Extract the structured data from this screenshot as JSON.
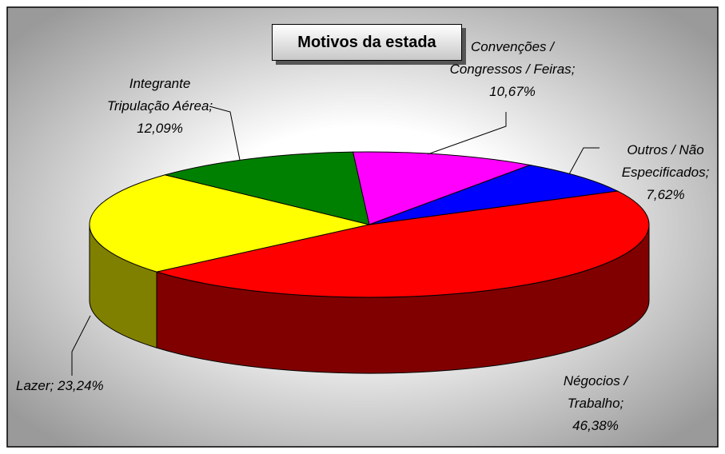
{
  "chart_data": {
    "type": "pie3d",
    "title": "Motivos da estada",
    "categories": [
      "Négocios / Trabalho",
      "Lazer",
      "Integrante Tripulação Aérea",
      "Convenções / Congressos / Feiras",
      "Outros / Não Especificados"
    ],
    "values": [
      46.38,
      23.24,
      12.09,
      10.67,
      7.62
    ],
    "value_labels": [
      "46,38%",
      "23,24%",
      "12,09%",
      "10,67%",
      "7,62%"
    ],
    "label_separator": ";",
    "colors": [
      "#ff0000",
      "#ffff00",
      "#008000",
      "#ff00ff",
      "#0000ff"
    ],
    "side_colors": [
      "#800000",
      "#808000",
      "#004000",
      "#800080",
      "#000080"
    ]
  }
}
